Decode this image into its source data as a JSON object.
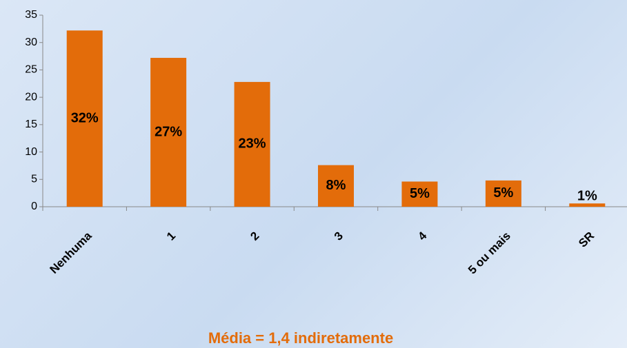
{
  "chart_data": {
    "type": "bar",
    "categories": [
      "Nenhuma",
      "1",
      "2",
      "3",
      "4",
      "5 ou mais",
      "SR"
    ],
    "values": [
      32.2,
      27.2,
      22.8,
      7.6,
      4.6,
      4.8,
      0.6
    ],
    "value_labels": [
      "32%",
      "27%",
      "23%",
      "8%",
      "5%",
      "5%",
      "1%"
    ],
    "color": "#e36c0a",
    "ylim": [
      0,
      35
    ],
    "yticks": [
      0,
      5,
      10,
      15,
      20,
      25,
      30,
      35
    ],
    "grid": false,
    "annotation": "Média = 1,4 indiretamente"
  }
}
